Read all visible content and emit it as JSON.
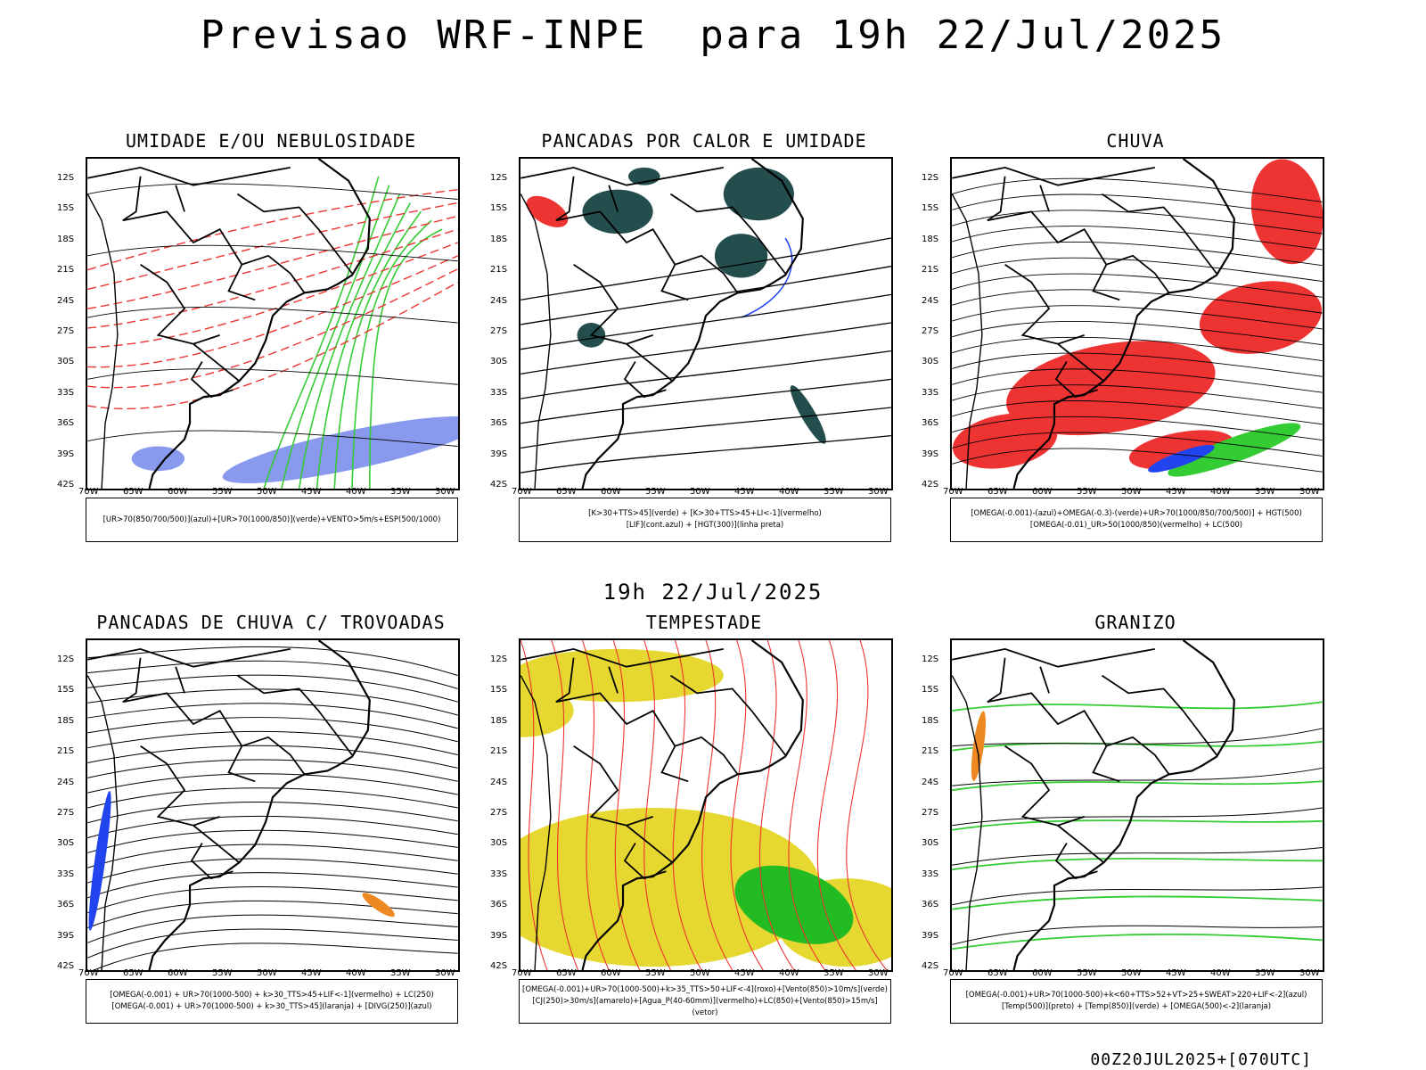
{
  "title": "Previsao WRF-INPE  para 19h 22/Jul/2025",
  "mid_title": "19h 22/Jul/2025",
  "footer": "00Z20JUL2025+[070UTC]",
  "axes": {
    "lat_labels": [
      "12S",
      "15S",
      "18S",
      "21S",
      "24S",
      "27S",
      "30S",
      "33S",
      "36S",
      "39S",
      "42S"
    ],
    "lon_labels": [
      "70W",
      "65W",
      "60W",
      "55W",
      "50W",
      "45W",
      "40W",
      "35W",
      "30W"
    ]
  },
  "panels": [
    {
      "title": "UMIDADE E/OU NEBULOSIDADE",
      "legend": [
        "[UR>70(850/700/500)](azul)+[UR>70(1000/850)](verde)+VENTO>5m/s+ESP(500/1000)"
      ],
      "colors": {
        "green": "#33cc33",
        "red": "#ee3333",
        "blue": "#8899ee"
      }
    },
    {
      "title": "PANCADAS POR CALOR E UMIDADE",
      "legend": [
        "[K>30+TTS>45](verde) + [K>30+TTS>45+LI<-1](vermelho)",
        "[LIF](cont.azul) + [HGT(300)](linha preta)"
      ],
      "colors": {
        "teal": "#244d4d",
        "red": "#ee3333",
        "blue": "#2244ee"
      }
    },
    {
      "title": "CHUVA",
      "legend": [
        "[OMEGA(-0.001)-(azul)+OMEGA(-0.3)-(verde)+UR>70(1000/850/700/500)] + HGT(500)",
        "[OMEGA(-0.01)_UR>50(1000/850)(vermelho) + LC(500)"
      ],
      "colors": {
        "red": "#ee3333",
        "green": "#33cc33",
        "blue": "#2244ee"
      }
    },
    {
      "title": "PANCADAS DE CHUVA C/ TROVOADAS",
      "legend": [
        "[OMEGA(-0.001) + UR>70(1000-500) + k>30_TTS>45+LIF<-1](vermelho) + LC(250)",
        "[OMEGA(-0.001) + UR>70(1000-500) + k>30_TTS>45](laranja) + [DIVG(250)](azul)"
      ],
      "colors": {
        "blue": "#2244ee",
        "orange": "#ee8822"
      }
    },
    {
      "title": "TEMPESTADE",
      "legend": [
        "[OMEGA(-0.001)+UR>70(1000-500)+k>35_TTS>50+LIF<-4](roxo)+[Vento(850)>10m/s](verde)",
        "[CJ(250)>30m/s](amarelo)+[Agua_P(40-60mm)](vermelho)+LC(850)+[Vento(850)>15m/s](vetor)"
      ],
      "colors": {
        "yellow": "#e6d830",
        "green": "#22bb22",
        "red": "#ee3333"
      }
    },
    {
      "title": "GRANIZO",
      "legend": [
        "[OMEGA(-0.001)+UR>70(1000-500)+k<60+TTS>52+VT>25+SWEAT>220+LIF<-2](azul)",
        "[Temp(500)](preto) + [Temp(850)](verde) + [OMEGA(500)<-2](laranja)"
      ],
      "colors": {
        "green": "#33cc33",
        "orange": "#ee8822"
      }
    }
  ]
}
